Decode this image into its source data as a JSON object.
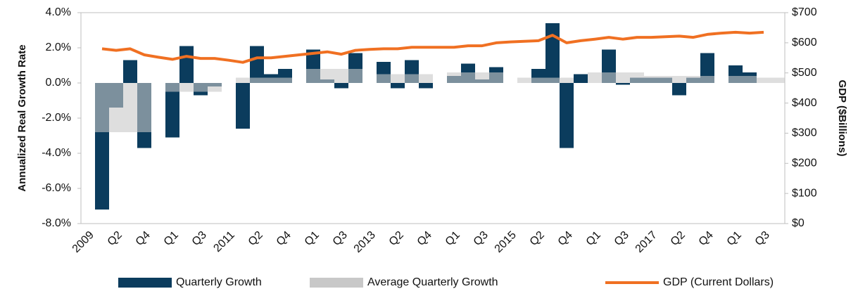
{
  "chart_data": {
    "type": "bar-line",
    "ylabel": "Annualized Real Growth Rate",
    "y2label": "GDP ($Billions)",
    "categories": [
      "2009",
      null,
      "Q2",
      null,
      "Q4",
      null,
      "Q1",
      null,
      "Q3",
      null,
      "2011",
      null,
      "Q2",
      null,
      "Q4",
      null,
      "Q1",
      null,
      "Q3",
      null,
      "2013",
      null,
      "Q2",
      null,
      "Q4",
      null,
      "Q1",
      null,
      "Q3",
      null,
      "2015",
      null,
      "Q2",
      null,
      "Q4",
      null,
      "Q1",
      null,
      "Q3",
      null,
      "2017",
      null,
      "Q2",
      null,
      "Q4",
      null,
      "Q1",
      null,
      "Q3",
      null
    ],
    "series": [
      {
        "name": "Quarterly Growth",
        "kind": "bar",
        "color": "#0b3c5d",
        "values": [
          null,
          -7.2,
          -1.4,
          1.3,
          -3.7,
          null,
          -3.1,
          2.1,
          -0.7,
          -0.2,
          null,
          -2.6,
          2.1,
          0.5,
          0.8,
          null,
          1.9,
          0.2,
          -0.3,
          1.7,
          null,
          1.2,
          -0.3,
          1.3,
          -0.3,
          null,
          0.4,
          1.1,
          0.2,
          0.9,
          null,
          null,
          0.8,
          3.4,
          -3.7,
          0.5,
          null,
          1.9,
          -0.1,
          0.3,
          0.3,
          0.3,
          -0.7,
          0.3,
          1.7,
          null,
          1.0,
          0.6,
          null,
          null
        ]
      },
      {
        "name": "Average Quarterly Growth",
        "kind": "bar",
        "color": "#c8c8c8",
        "values": [
          null,
          -2.8,
          -2.8,
          -2.8,
          -2.8,
          null,
          -0.5,
          -0.5,
          -0.5,
          -0.5,
          null,
          0.3,
          0.3,
          0.3,
          0.3,
          null,
          0.8,
          0.8,
          0.8,
          0.8,
          null,
          0.5,
          0.5,
          0.5,
          0.5,
          null,
          0.6,
          0.6,
          0.6,
          0.6,
          null,
          0.3,
          0.3,
          0.3,
          0.3,
          null,
          0.6,
          0.6,
          0.6,
          0.6,
          0.4,
          0.4,
          0.4,
          0.4,
          0.4,
          null,
          0.4,
          0.4,
          0.3,
          0.3
        ]
      },
      {
        "name": "GDP (Current Dollars)",
        "kind": "line",
        "axis": "y2",
        "color": "#f07022",
        "values": [
          null,
          580,
          575,
          580,
          560,
          552,
          545,
          555,
          548,
          548,
          542,
          535,
          550,
          550,
          555,
          560,
          565,
          570,
          562,
          575,
          578,
          580,
          580,
          585,
          585,
          585,
          585,
          590,
          590,
          600,
          603,
          605,
          607,
          625,
          600,
          607,
          612,
          618,
          612,
          618,
          618,
          620,
          622,
          618,
          628,
          632,
          635,
          632,
          635,
          null
        ]
      }
    ],
    "ylim": [
      -8,
      4
    ],
    "yticks": [
      {
        "value": -8,
        "label": "-8.0%"
      },
      {
        "value": -6,
        "label": "-6.0%"
      },
      {
        "value": -4,
        "label": "-4.0%"
      },
      {
        "value": -2,
        "label": "-2.0%"
      },
      {
        "value": 0,
        "label": "0.0%"
      },
      {
        "value": 2,
        "label": "2.0%"
      },
      {
        "value": 4,
        "label": "4.0%"
      }
    ],
    "y2lim": [
      0,
      700
    ],
    "y2ticks": [
      {
        "value": 0,
        "label": "$0"
      },
      {
        "value": 100,
        "label": "$100"
      },
      {
        "value": 200,
        "label": "$200"
      },
      {
        "value": 300,
        "label": "$300"
      },
      {
        "value": 400,
        "label": "$400"
      },
      {
        "value": 500,
        "label": "$500"
      },
      {
        "value": 600,
        "label": "$600"
      },
      {
        "value": 700,
        "label": "$700"
      }
    ],
    "legend": "bottom"
  }
}
